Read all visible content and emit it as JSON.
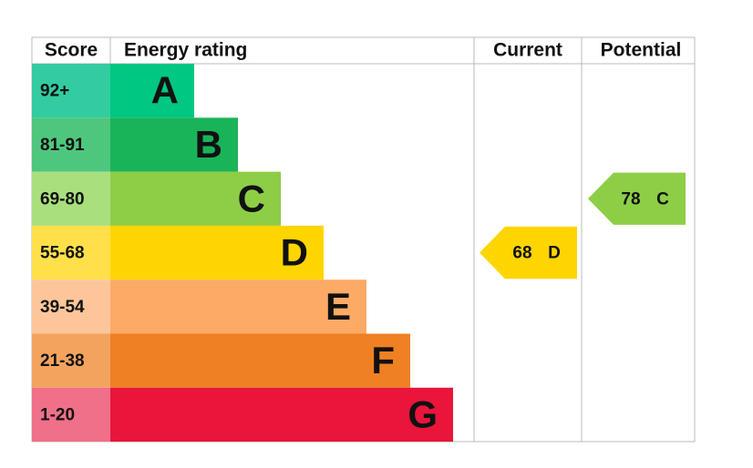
{
  "header": {
    "score": "Score",
    "energy_rating": "Energy rating",
    "current": "Current",
    "potential": "Potential"
  },
  "bands": [
    {
      "score": "92+",
      "letter": "A",
      "color": "#00c781",
      "score_color": "#33cca0"
    },
    {
      "score": "81-91",
      "letter": "B",
      "color": "#19b459",
      "score_color": "#4fc67e"
    },
    {
      "score": "69-80",
      "letter": "C",
      "color": "#8dce46",
      "score_color": "#aadf7e"
    },
    {
      "score": "55-68",
      "letter": "D",
      "color": "#ffd500",
      "score_color": "#ffe04a"
    },
    {
      "score": "39-54",
      "letter": "E",
      "color": "#fcaa65",
      "score_color": "#fdc69a"
    },
    {
      "score": "21-38",
      "letter": "F",
      "color": "#ef8023",
      "score_color": "#f4a35f"
    },
    {
      "score": "1-20",
      "letter": "G",
      "color": "#e9153b",
      "score_color": "#f07089"
    }
  ],
  "current": {
    "value": "68",
    "letter": "D",
    "color": "#ffd500"
  },
  "potential": {
    "value": "78",
    "letter": "C",
    "color": "#8dce46"
  }
}
